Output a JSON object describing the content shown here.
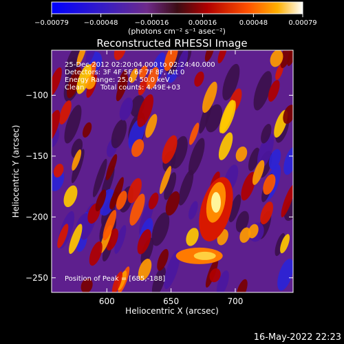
{
  "chart_data": {
    "type": "heatmap",
    "title": "Reconstructed RHESSI Image",
    "xlabel": "Heliocentric X (arcsec)",
    "ylabel": "Heliocentric Y (arcsec)",
    "xlim": [
      557,
      745
    ],
    "ylim": [
      -262,
      -63
    ],
    "xticks": [
      600,
      650,
      700
    ],
    "xtick_labels": [
      "600",
      "650",
      "700"
    ],
    "yticks": [
      -100,
      -150,
      -200,
      -250
    ],
    "ytick_labels": [
      "−100",
      "−150",
      "−200",
      "−250"
    ],
    "colorbar": {
      "range": [
        -0.00079,
        0.00079
      ],
      "ticks": [
        -0.00079,
        -0.00048,
        -0.00016,
        0.00016,
        0.00048,
        0.00079
      ],
      "tick_labels": [
        "−0.00079",
        "−0.00048",
        "−0.00016",
        "0.00016",
        "0.00048",
        "0.00079"
      ],
      "unit_label": "(photons cm⁻² s⁻¹ asec⁻²)",
      "colors": [
        "#0000ff",
        "#5a1f9e",
        "#6e2a8a",
        "#5a1010",
        "#c00000",
        "#ff5000",
        "#ffb000",
        "#ffffff"
      ]
    },
    "annotations": {
      "time_range": "25-Dec-2012 02:20:04.000 to 02:24:40.000",
      "detectors": "Detectors: 3F 4F 5F 6F 7F 8F, Att 0",
      "energy_range": "Energy Range: 25.0 - 50.0 keV",
      "method": "Clean",
      "total_counts": "Total counts: 4.49E+03",
      "peak_position": "Position of Peak = [685,-188]"
    },
    "peak": {
      "x": 685,
      "y": -188
    },
    "grid": false
  },
  "footer": {
    "timestamp": "16-May-2022 22:23"
  }
}
